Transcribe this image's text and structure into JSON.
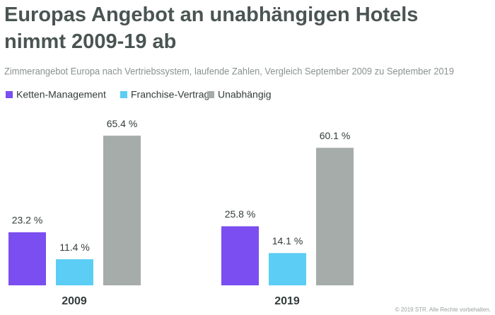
{
  "chart_data": {
    "type": "bar",
    "title": "Europas Angebot an unabhängigen Hotels nimmt 2009-19 ab",
    "subtitle": "Zimmerangebot Europa nach Vertriebssystem, laufende Zahlen, Vergleich September 2009 zu September 2019",
    "categories": [
      "2009",
      "2019"
    ],
    "series": [
      {
        "name": "Ketten-Management",
        "color": "#7a4ef0",
        "values": [
          23.2,
          25.8
        ],
        "value_labels": [
          "23.2 %",
          "25.8 %"
        ]
      },
      {
        "name": "Franchise-Vertrag",
        "color": "#5ccdf4",
        "values": [
          11.4,
          14.1
        ],
        "value_labels": [
          "11.4 %",
          "14.1 %"
        ]
      },
      {
        "name": "Unabhängig",
        "color": "#a5aca9",
        "values": [
          65.4,
          60.1
        ],
        "value_labels": [
          "65.4 %",
          "60.1 %"
        ]
      }
    ],
    "legend": "top-left",
    "footer": "© 2019 STR. Alle Rechte vorbehalten."
  }
}
